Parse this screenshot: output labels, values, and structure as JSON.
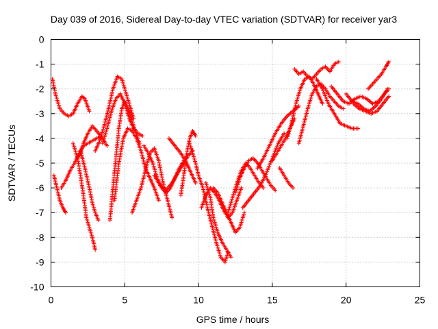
{
  "chart_data": {
    "type": "scatter",
    "title": "Day 039 of 2016, Sidereal Day-to-day VTEC variation (SDTVAR) for receiver yar3",
    "xlabel": "GPS time / hours",
    "ylabel": "SDTVAR / TECUs",
    "xlim": [
      0,
      25
    ],
    "ylim": [
      -10,
      0
    ],
    "xticks": [
      "0",
      "5",
      "10",
      "15",
      "20",
      "25"
    ],
    "yticks": [
      "0",
      "-1",
      "-2",
      "-3",
      "-4",
      "-5",
      "-6",
      "-7",
      "-8",
      "-9",
      "-10"
    ],
    "xtick_values": [
      0,
      5,
      10,
      15,
      20,
      25
    ],
    "ytick_values": [
      0,
      -1,
      -2,
      -3,
      -4,
      -5,
      -6,
      -7,
      -8,
      -9,
      -10
    ],
    "grid": true,
    "marker": "plus",
    "color": "#ff0000",
    "tracks": [
      {
        "x": [
          0.1,
          0.3,
          0.6,
          0.9,
          1.2,
          1.5,
          1.8,
          2.1,
          2.3,
          2.6
        ],
        "y": [
          -1.6,
          -2.2,
          -2.8,
          -3.0,
          -3.1,
          -3.0,
          -2.6,
          -2.3,
          -2.4,
          -2.9
        ]
      },
      {
        "x": [
          0.2,
          0.4,
          0.6,
          0.8,
          1.0
        ],
        "y": [
          -5.5,
          -6.0,
          -6.5,
          -6.8,
          -7.0
        ]
      },
      {
        "x": [
          0.7,
          1.0,
          1.3,
          1.6,
          1.9,
          2.2,
          2.5,
          2.8,
          3.1,
          3.4
        ],
        "y": [
          -6.0,
          -5.7,
          -5.3,
          -5.0,
          -4.6,
          -4.3,
          -4.2,
          -4.1,
          -4.0,
          -3.9
        ]
      },
      {
        "x": [
          1.5,
          1.8,
          2.0,
          2.2,
          2.4,
          2.6,
          2.8,
          3.0
        ],
        "y": [
          -4.2,
          -4.8,
          -5.5,
          -6.3,
          -7.2,
          -7.6,
          -8.0,
          -8.5
        ]
      },
      {
        "x": [
          1.8,
          2.0,
          2.2,
          2.5,
          2.8,
          3.1,
          3.5,
          3.8
        ],
        "y": [
          -4.8,
          -4.6,
          -4.2,
          -3.8,
          -3.5,
          -3.7,
          -4.0,
          -4.3
        ]
      },
      {
        "x": [
          2.0,
          2.3,
          2.6,
          2.8,
          3.0,
          3.2
        ],
        "y": [
          -4.5,
          -5.2,
          -6.0,
          -6.6,
          -7.0,
          -7.3
        ]
      },
      {
        "x": [
          3.0,
          3.3,
          3.6,
          3.9,
          4.2,
          4.5,
          4.8,
          5.0,
          5.3,
          5.6
        ],
        "y": [
          -4.5,
          -4.1,
          -3.5,
          -2.8,
          -2.0,
          -1.5,
          -1.6,
          -2.0,
          -2.6,
          -3.2
        ]
      },
      {
        "x": [
          3.5,
          3.8,
          4.1,
          4.4,
          4.7,
          5.0,
          5.3,
          5.6,
          5.9,
          6.2
        ],
        "y": [
          -4.2,
          -3.6,
          -2.9,
          -2.4,
          -2.2,
          -2.6,
          -3.2,
          -3.6,
          -3.8,
          -3.9
        ]
      },
      {
        "x": [
          4.0,
          4.2,
          4.4,
          4.6,
          4.8,
          5.0,
          5.3,
          5.6,
          6.0
        ],
        "y": [
          -7.3,
          -6.0,
          -4.8,
          -3.6,
          -2.8,
          -2.5,
          -2.9,
          -3.5,
          -4.2
        ]
      },
      {
        "x": [
          4.3,
          4.6,
          4.9,
          5.2,
          5.5,
          5.8,
          6.1,
          6.4,
          6.7,
          7.0,
          7.3
        ],
        "y": [
          -6.5,
          -5.0,
          -4.0,
          -3.6,
          -3.7,
          -4.0,
          -4.5,
          -5.2,
          -5.6,
          -6.0,
          -6.5
        ]
      },
      {
        "x": [
          5.5,
          5.8,
          6.1,
          6.4,
          6.7,
          7.0,
          7.3,
          7.6,
          7.9,
          8.2
        ],
        "y": [
          -7.0,
          -6.5,
          -6.0,
          -5.3,
          -4.6,
          -4.4,
          -4.9,
          -5.8,
          -6.5,
          -7.2
        ]
      },
      {
        "x": [
          6.3,
          6.6,
          6.9,
          7.2,
          7.5,
          7.8,
          8.1,
          8.4,
          8.7,
          9.0
        ],
        "y": [
          -4.3,
          -4.6,
          -5.0,
          -5.6,
          -6.0,
          -6.2,
          -6.0,
          -5.6,
          -5.2,
          -4.9
        ]
      },
      {
        "x": [
          7.0,
          7.4,
          7.8,
          8.2,
          8.6,
          9.0,
          9.3,
          9.6
        ],
        "y": [
          -5.5,
          -5.9,
          -6.1,
          -5.8,
          -5.4,
          -5.0,
          -4.7,
          -4.5
        ]
      },
      {
        "x": [
          8.0,
          8.4,
          8.8,
          9.2,
          9.5,
          9.8
        ],
        "y": [
          -4.0,
          -4.3,
          -4.6,
          -5.0,
          -5.4,
          -5.8
        ]
      },
      {
        "x": [
          8.8,
          9.0,
          9.2,
          9.4,
          9.6,
          9.8
        ],
        "y": [
          -6.3,
          -5.5,
          -4.6,
          -4.0,
          -3.7,
          -3.9
        ]
      },
      {
        "x": [
          9.4,
          9.6,
          9.8,
          10.0
        ],
        "y": [
          -4.2,
          -4.6,
          -5.0,
          -5.5
        ]
      },
      {
        "x": [
          10.0,
          10.3,
          10.6,
          10.9,
          11.2,
          11.5,
          11.8,
          12.0
        ],
        "y": [
          -5.5,
          -6.0,
          -6.8,
          -7.5,
          -8.2,
          -8.8,
          -9.0,
          -8.6
        ]
      },
      {
        "x": [
          10.2,
          10.5,
          10.8,
          11.1,
          11.4,
          11.7,
          12.0,
          12.3,
          12.6,
          12.9
        ],
        "y": [
          -6.8,
          -6.3,
          -6.0,
          -6.2,
          -6.5,
          -6.9,
          -7.2,
          -7.0,
          -6.5,
          -6.0
        ]
      },
      {
        "x": [
          10.5,
          10.8,
          11.0,
          11.3,
          11.6,
          11.9,
          12.2
        ],
        "y": [
          -5.8,
          -6.4,
          -7.2,
          -7.8,
          -8.2,
          -8.5,
          -8.8
        ]
      },
      {
        "x": [
          11.0,
          11.3,
          11.6,
          11.9,
          12.2,
          12.5,
          12.8,
          13.1
        ],
        "y": [
          -6.0,
          -6.2,
          -6.6,
          -7.0,
          -7.4,
          -7.8,
          -7.6,
          -7.0
        ]
      },
      {
        "x": [
          12.0,
          12.3,
          12.6,
          12.9,
          13.2,
          13.5,
          13.8,
          14.1,
          14.4
        ],
        "y": [
          -7.0,
          -6.4,
          -5.8,
          -5.3,
          -5.0,
          -5.2,
          -5.5,
          -5.8,
          -6.0
        ]
      },
      {
        "x": [
          12.5,
          12.8,
          13.1,
          13.4,
          13.7,
          14.0,
          14.3,
          14.6,
          14.9,
          15.2
        ],
        "y": [
          -6.2,
          -5.6,
          -5.2,
          -4.9,
          -4.8,
          -5.0,
          -5.3,
          -5.6,
          -5.9,
          -6.1
        ]
      },
      {
        "x": [
          13.0,
          13.4,
          13.8,
          14.2,
          14.6,
          15.0,
          15.4,
          15.8
        ],
        "y": [
          -6.8,
          -6.5,
          -6.2,
          -5.9,
          -5.4,
          -4.8,
          -4.2,
          -3.8
        ]
      },
      {
        "x": [
          14.0,
          14.4,
          14.8,
          15.2,
          15.6,
          16.0,
          16.4,
          16.8
        ],
        "y": [
          -5.2,
          -4.8,
          -4.3,
          -3.8,
          -3.4,
          -3.1,
          -2.9,
          -2.7
        ]
      },
      {
        "x": [
          15.0,
          15.3,
          15.6,
          15.9,
          16.2,
          16.5
        ],
        "y": [
          -4.9,
          -4.6,
          -4.3,
          -4.0,
          -3.6,
          -3.2
        ]
      },
      {
        "x": [
          15.5,
          15.8,
          16.1,
          16.4
        ],
        "y": [
          -5.2,
          -5.5,
          -5.8,
          -6.0
        ]
      },
      {
        "x": [
          16.0,
          16.3,
          16.6,
          16.9,
          17.2,
          17.5,
          17.8,
          18.1,
          18.4
        ],
        "y": [
          -4.0,
          -3.4,
          -2.6,
          -2.0,
          -1.6,
          -1.5,
          -1.8,
          -2.2,
          -2.6
        ]
      },
      {
        "x": [
          16.5,
          16.8,
          17.1,
          17.4,
          17.7,
          18.0,
          18.3,
          18.6,
          18.9,
          19.2,
          19.5
        ],
        "y": [
          -1.2,
          -1.4,
          -1.3,
          -1.5,
          -1.6,
          -1.4,
          -1.2,
          -1.1,
          -1.3,
          -1.0,
          -0.9
        ]
      },
      {
        "x": [
          16.8,
          17.1,
          17.4,
          17.7,
          18.0,
          18.3,
          18.6,
          18.9,
          19.2,
          19.5,
          19.8
        ],
        "y": [
          -4.2,
          -3.5,
          -2.8,
          -2.2,
          -1.9,
          -1.8,
          -2.0,
          -2.3,
          -2.5,
          -2.7,
          -2.8
        ]
      },
      {
        "x": [
          18.0,
          18.4,
          18.8,
          19.2,
          19.6,
          20.0,
          20.4,
          20.8
        ],
        "y": [
          -1.6,
          -2.0,
          -2.6,
          -3.0,
          -3.4,
          -3.5,
          -3.6,
          -3.6
        ]
      },
      {
        "x": [
          19.0,
          19.4,
          19.8,
          20.2,
          20.6,
          21.0,
          21.4,
          21.8,
          22.2,
          22.6,
          22.9
        ],
        "y": [
          -1.9,
          -2.2,
          -2.5,
          -2.6,
          -2.4,
          -2.3,
          -2.4,
          -2.6,
          -2.5,
          -2.2,
          -2.0
        ]
      },
      {
        "x": [
          20.0,
          20.4,
          20.8,
          21.2,
          21.6,
          22.0,
          22.4,
          22.8
        ],
        "y": [
          -2.2,
          -2.5,
          -2.6,
          -2.8,
          -2.9,
          -2.7,
          -2.4,
          -2.0
        ]
      },
      {
        "x": [
          21.5,
          21.8,
          22.1,
          22.4,
          22.7,
          22.9
        ],
        "y": [
          -2.0,
          -1.8,
          -1.6,
          -1.4,
          -1.1,
          -0.9
        ]
      },
      {
        "x": [
          20.5,
          20.9,
          21.3,
          21.7,
          22.1,
          22.5,
          22.9
        ],
        "y": [
          -2.6,
          -2.8,
          -2.9,
          -3.0,
          -2.9,
          -2.6,
          -2.3
        ]
      }
    ]
  }
}
